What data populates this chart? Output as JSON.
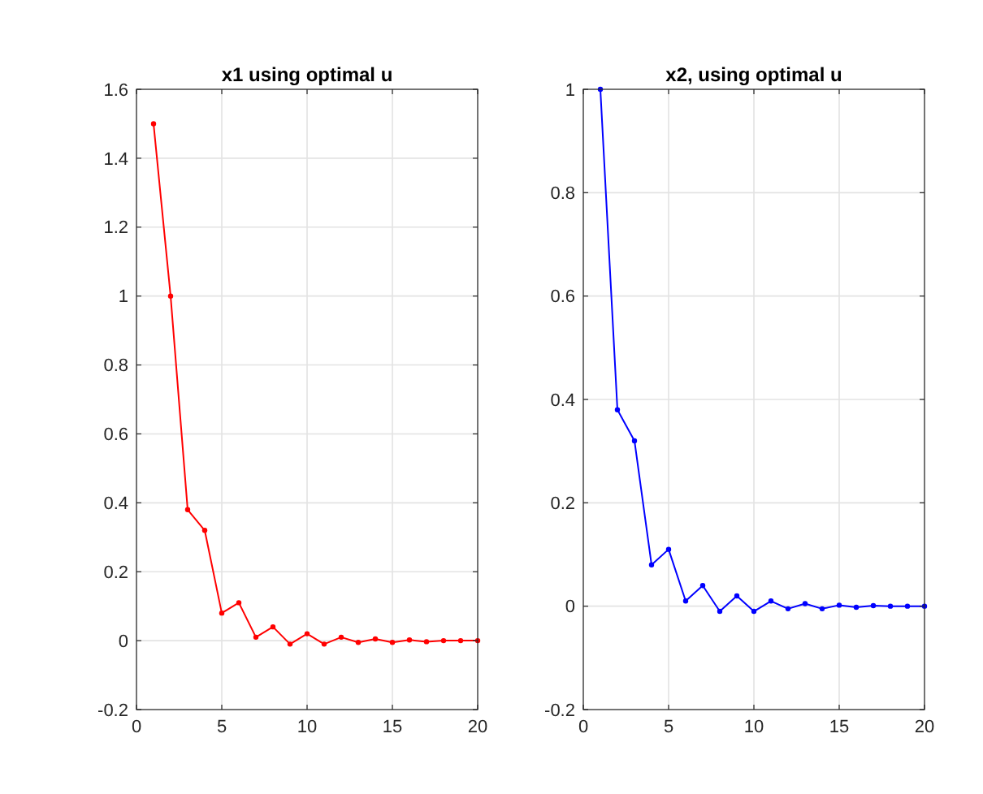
{
  "chart_data": [
    {
      "type": "line",
      "title": "x1 using optimal u",
      "x": [
        1,
        2,
        3,
        4,
        5,
        6,
        7,
        8,
        9,
        10,
        11,
        12,
        13,
        14,
        15,
        16,
        17,
        18,
        19,
        20
      ],
      "series": [
        {
          "color": "#ff0000",
          "values": [
            1.5,
            1.0,
            0.38,
            0.32,
            0.08,
            0.11,
            0.01,
            0.04,
            -0.01,
            0.02,
            -0.01,
            0.01,
            -0.005,
            0.005,
            -0.005,
            0.002,
            -0.003,
            0,
            0,
            0
          ]
        }
      ],
      "xlim": [
        0,
        20
      ],
      "xticks": [
        0,
        5,
        10,
        15,
        20
      ],
      "ylim": [
        -0.2,
        1.6
      ],
      "yticks": [
        -0.2,
        0,
        0.2,
        0.4,
        0.6,
        0.8,
        1,
        1.2,
        1.4,
        1.6
      ],
      "grid": true,
      "marker": "circle",
      "line_style": "solid"
    },
    {
      "type": "line",
      "title": "x2, using optimal u",
      "x": [
        1,
        2,
        3,
        4,
        5,
        6,
        7,
        8,
        9,
        10,
        11,
        12,
        13,
        14,
        15,
        16,
        17,
        18,
        19,
        20
      ],
      "series": [
        {
          "color": "#0000ff",
          "values": [
            1.0,
            0.38,
            0.32,
            0.08,
            0.11,
            0.01,
            0.04,
            -0.01,
            0.02,
            -0.01,
            0.01,
            -0.005,
            0.005,
            -0.005,
            0.002,
            -0.002,
            0.001,
            0,
            0,
            0
          ]
        }
      ],
      "xlim": [
        0,
        20
      ],
      "xticks": [
        0,
        5,
        10,
        15,
        20
      ],
      "ylim": [
        -0.2,
        1
      ],
      "yticks": [
        -0.2,
        0,
        0.2,
        0.4,
        0.6,
        0.8,
        1
      ],
      "grid": true,
      "marker": "circle",
      "line_style": "solid"
    }
  ]
}
